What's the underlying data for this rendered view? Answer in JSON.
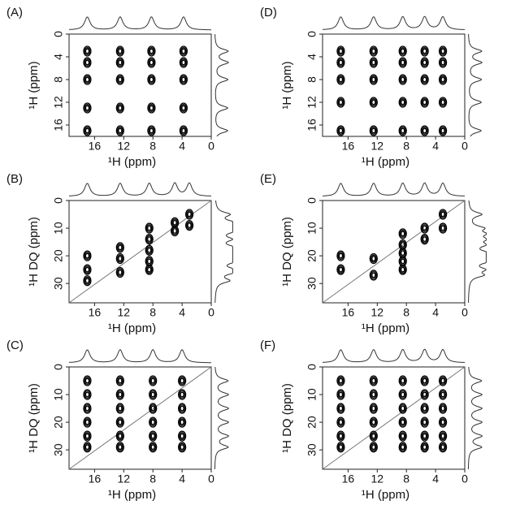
{
  "chart_data": [
    {
      "type": "contour",
      "label": "(A)",
      "x_label": "¹H  (ppm)",
      "y_label": "¹H  (ppm)",
      "xlim": [
        19.5,
        0
      ],
      "ylim": [
        0,
        18
      ],
      "xticks": [
        16,
        12,
        8,
        4,
        0
      ],
      "yticks": [
        0,
        4,
        8,
        12,
        16
      ],
      "diagonal": false,
      "x": [
        17,
        17,
        17,
        17,
        17,
        12.5,
        12.5,
        12.5,
        12.5,
        12.5,
        8.2,
        8.2,
        8.2,
        8.2,
        8.2,
        3.8,
        3.8,
        3.8,
        3.8,
        3.8
      ],
      "values": [
        3,
        5,
        8,
        13,
        17,
        3,
        5,
        8,
        13,
        17,
        3,
        5,
        8,
        13,
        17,
        3,
        5,
        8,
        13,
        17
      ]
    },
    {
      "type": "contour",
      "label": "(D)",
      "x_label": "¹H  (ppm)",
      "y_label": "¹H  (ppm)",
      "xlim": [
        19.5,
        0
      ],
      "ylim": [
        0,
        18
      ],
      "xticks": [
        16,
        12,
        8,
        4,
        0
      ],
      "yticks": [
        0,
        4,
        8,
        12,
        16
      ],
      "diagonal": false,
      "x": [
        17,
        17,
        17,
        17,
        17,
        12.5,
        12.5,
        12.5,
        12.5,
        12.5,
        8.5,
        8.5,
        8.5,
        8.5,
        8.5,
        5.5,
        5.5,
        5.5,
        5.5,
        5.5,
        3,
        3,
        3,
        3,
        3
      ],
      "values": [
        3,
        5,
        8,
        12,
        17,
        3,
        5,
        8,
        12,
        17,
        3,
        5,
        8,
        12,
        17,
        3,
        5,
        8,
        12,
        17,
        3,
        5,
        8,
        12,
        17
      ]
    },
    {
      "type": "contour",
      "label": "(B)",
      "x_label": "¹H  (ppm)",
      "y_label": "¹H DQ (ppm)",
      "xlim": [
        19.5,
        0
      ],
      "ylim": [
        0,
        37
      ],
      "xticks": [
        16,
        12,
        8,
        4,
        0
      ],
      "yticks": [
        0,
        10,
        20,
        30
      ],
      "diagonal": true,
      "x": [
        17,
        17,
        17,
        12.5,
        12.5,
        12.5,
        8.5,
        8.5,
        8.5,
        8.5,
        8.5,
        5,
        5,
        3,
        3
      ],
      "values": [
        20,
        25,
        29,
        17,
        21,
        26,
        10,
        14,
        18,
        22,
        25,
        8,
        11,
        5,
        9
      ]
    },
    {
      "type": "contour",
      "label": "(E)",
      "x_label": "¹H  (ppm)",
      "y_label": "¹H DQ (ppm)",
      "xlim": [
        19.5,
        0
      ],
      "ylim": [
        0,
        37
      ],
      "xticks": [
        16,
        12,
        8,
        4,
        0
      ],
      "yticks": [
        0,
        10,
        20,
        30
      ],
      "diagonal": true,
      "x": [
        17,
        17,
        12.5,
        12.5,
        8.5,
        8.5,
        8.5,
        8.5,
        8.5,
        5.5,
        5.5,
        3,
        3
      ],
      "values": [
        20,
        25,
        21,
        27,
        12,
        16,
        19,
        22,
        25,
        10,
        14,
        5,
        10
      ]
    },
    {
      "type": "contour",
      "label": "(C)",
      "x_label": "¹H  (ppm)",
      "y_label": "¹H DQ (ppm)",
      "xlim": [
        19.5,
        0
      ],
      "ylim": [
        0,
        37
      ],
      "xticks": [
        16,
        12,
        8,
        4,
        0
      ],
      "yticks": [
        0,
        10,
        20,
        30
      ],
      "diagonal": true,
      "x": [
        17,
        17,
        17,
        17,
        17,
        17,
        12.5,
        12.5,
        12.5,
        12.5,
        12.5,
        12.5,
        8,
        8,
        8,
        8,
        8,
        8,
        4,
        4,
        4,
        4,
        4,
        4
      ],
      "values": [
        5,
        10,
        15,
        20,
        25,
        29,
        5,
        10,
        15,
        20,
        25,
        29,
        5,
        10,
        15,
        20,
        25,
        29,
        5,
        10,
        15,
        20,
        25,
        29
      ]
    },
    {
      "type": "contour",
      "label": "(F)",
      "x_label": "¹H  (ppm)",
      "y_label": "¹H DQ (ppm)",
      "xlim": [
        19.5,
        0
      ],
      "ylim": [
        0,
        37
      ],
      "xticks": [
        16,
        12,
        8,
        4,
        0
      ],
      "yticks": [
        0,
        10,
        20,
        30
      ],
      "diagonal": true,
      "x": [
        17,
        17,
        17,
        17,
        17,
        17,
        12.5,
        12.5,
        12.5,
        12.5,
        12.5,
        12.5,
        8.5,
        8.5,
        8.5,
        8.5,
        8.5,
        8.5,
        5.5,
        5.5,
        5.5,
        5.5,
        5.5,
        5.5,
        3,
        3,
        3,
        3,
        3,
        3
      ],
      "values": [
        5,
        10,
        15,
        20,
        25,
        29,
        5,
        10,
        15,
        20,
        25,
        29,
        5,
        10,
        15,
        20,
        25,
        29,
        5,
        10,
        15,
        20,
        25,
        29,
        5,
        10,
        15,
        20,
        25,
        29
      ]
    }
  ]
}
